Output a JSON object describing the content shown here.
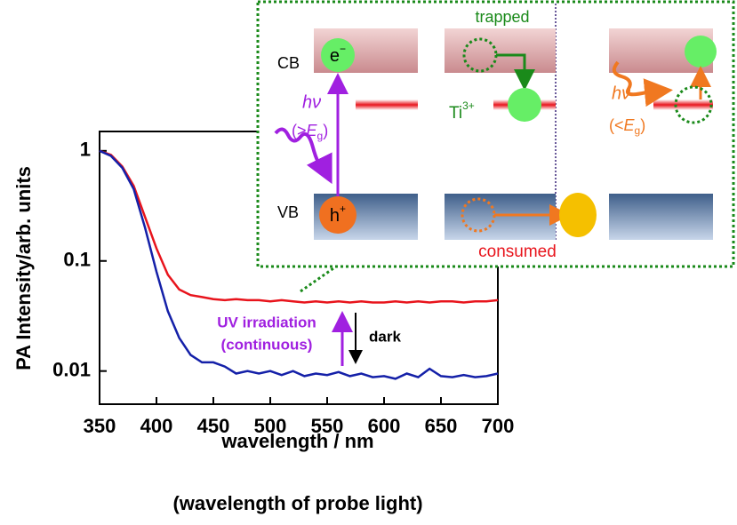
{
  "chart_data": {
    "type": "line",
    "log_y": true,
    "x": [
      350,
      360,
      370,
      380,
      390,
      400,
      410,
      420,
      430,
      440,
      450,
      460,
      470,
      480,
      490,
      500,
      510,
      520,
      530,
      540,
      550,
      560,
      570,
      580,
      590,
      600,
      610,
      620,
      630,
      640,
      650,
      660,
      670,
      680,
      690,
      700
    ],
    "series": [
      {
        "color": "#e8141c",
        "values": [
          1,
          0.92,
          0.72,
          0.48,
          0.25,
          0.13,
          0.075,
          0.055,
          0.049,
          0.047,
          0.045,
          0.044,
          0.045,
          0.044,
          0.044,
          0.043,
          0.044,
          0.043,
          0.042,
          0.043,
          0.042,
          0.043,
          0.042,
          0.043,
          0.042,
          0.042,
          0.043,
          0.042,
          0.043,
          0.042,
          0.043,
          0.043,
          0.042,
          0.043,
          0.043,
          0.044
        ]
      },
      {
        "color": "#1420a8",
        "values": [
          1,
          0.9,
          0.7,
          0.45,
          0.2,
          0.08,
          0.035,
          0.02,
          0.014,
          0.012,
          0.012,
          0.011,
          0.0095,
          0.01,
          0.0095,
          0.01,
          0.0092,
          0.01,
          0.009,
          0.0095,
          0.0092,
          0.0098,
          0.009,
          0.0095,
          0.0088,
          0.009,
          0.0085,
          0.0095,
          0.0088,
          0.0105,
          0.009,
          0.0088,
          0.0092,
          0.0088,
          0.009,
          0.0095
        ]
      }
    ],
    "xlim": [
      350,
      700
    ],
    "xticks": [
      350,
      400,
      450,
      500,
      550,
      600,
      650,
      700
    ],
    "ylim": [
      0.005,
      1.5
    ],
    "yticks": [
      0.01,
      0.1,
      1
    ],
    "xlabel": "wavelength / nm",
    "xlabel_note": "(wavelength of probe light)",
    "ylabel": "PA Intensity/arb. units",
    "annotations": {
      "uv": "UV irradiation",
      "uv_note": "(continuous)",
      "dark": "dark"
    }
  },
  "inset": {
    "cb": "CB",
    "vb": "VB",
    "electron": "e",
    "electron_sup": "−",
    "hole": "h",
    "hole_sup": "+",
    "hv1": "hν",
    "above_gap": [
      "(>",
      "E",
      "g",
      ")"
    ],
    "trapped": "trapped",
    "ti": "Ti",
    "ti_sup": "3+",
    "consumed": "consumed",
    "hv2": "hν",
    "below_gap": [
      "(<",
      "E",
      "g",
      ")"
    ]
  }
}
